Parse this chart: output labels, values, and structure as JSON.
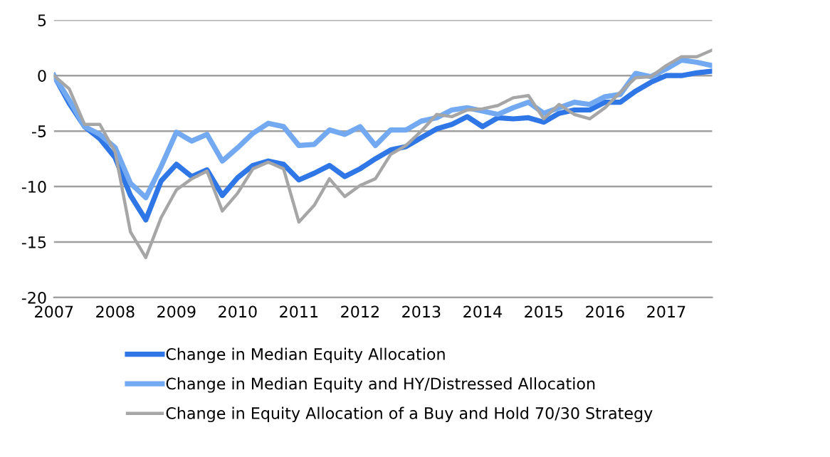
{
  "chart_data": {
    "type": "line",
    "x": [
      2007,
      2007.25,
      2007.5,
      2007.75,
      2008,
      2008.25,
      2008.5,
      2008.75,
      2009,
      2009.25,
      2009.5,
      2009.75,
      2010,
      2010.25,
      2010.5,
      2010.75,
      2011,
      2011.25,
      2011.5,
      2011.75,
      2012,
      2012.25,
      2012.5,
      2012.75,
      2013,
      2013.25,
      2013.5,
      2013.75,
      2014,
      2014.25,
      2014.5,
      2014.75,
      2015,
      2015.25,
      2015.5,
      2015.75,
      2016,
      2016.25,
      2016.5,
      2016.75,
      2017,
      2017.25,
      2017.5,
      2017.75
    ],
    "series": [
      {
        "name": "Change in Median Equity Allocation",
        "color": "#2f76e6",
        "values": [
          0,
          -2.5,
          -4.6,
          -5.7,
          -7.4,
          -10.8,
          -13.0,
          -9.5,
          -8.0,
          -9.1,
          -8.5,
          -10.8,
          -9.2,
          -8.1,
          -7.7,
          -8.0,
          -9.4,
          -8.8,
          -8.1,
          -9.1,
          -8.4,
          -7.5,
          -6.7,
          -6.4,
          -5.6,
          -4.8,
          -4.4,
          -3.7,
          -4.6,
          -3.8,
          -3.9,
          -3.8,
          -4.2,
          -3.4,
          -3.1,
          -3.1,
          -2.4,
          -2.4,
          -1.4,
          -0.6,
          0.0,
          0.0,
          0.25,
          0.4
        ]
      },
      {
        "name": "Change in Median Equity and HY/Distressed Allocation",
        "color": "#72a9f1",
        "values": [
          0,
          -2.2,
          -4.6,
          -5.3,
          -6.5,
          -9.7,
          -11.0,
          -8.2,
          -5.1,
          -5.9,
          -5.3,
          -7.7,
          -6.5,
          -5.2,
          -4.3,
          -4.6,
          -6.3,
          -6.2,
          -4.9,
          -5.3,
          -4.6,
          -6.3,
          -4.9,
          -4.9,
          -4.1,
          -3.8,
          -3.1,
          -2.9,
          -3.2,
          -3.5,
          -2.9,
          -2.4,
          -3.4,
          -2.9,
          -2.4,
          -2.6,
          -1.9,
          -1.7,
          0.2,
          -0.1,
          0.6,
          1.4,
          1.2,
          0.9
        ]
      },
      {
        "name": "Change in Equity Allocation of a Buy and Hold 70/30 Strategy",
        "color": "#a6a6a6",
        "values": [
          0,
          -1.2,
          -4.4,
          -4.4,
          -6.9,
          -14.1,
          -16.4,
          -12.8,
          -10.3,
          -9.3,
          -8.6,
          -12.2,
          -10.6,
          -8.4,
          -7.8,
          -8.4,
          -13.2,
          -11.7,
          -9.3,
          -10.9,
          -9.9,
          -9.3,
          -7.1,
          -6.3,
          -5.0,
          -3.5,
          -3.7,
          -3.1,
          -3.0,
          -2.7,
          -2.0,
          -1.8,
          -3.9,
          -2.6,
          -3.5,
          -3.9,
          -2.9,
          -1.5,
          -0.2,
          -0.1,
          0.9,
          1.7,
          1.7,
          2.3
        ]
      }
    ],
    "xlim": [
      2007,
      2017.75
    ],
    "xticks": [
      2007,
      2008,
      2009,
      2010,
      2011,
      2012,
      2013,
      2014,
      2015,
      2016,
      2017
    ],
    "ylim": [
      -20,
      5
    ],
    "yticks": [
      -20,
      -15,
      -10,
      -5,
      0,
      5
    ],
    "grid": "y",
    "legend": "bottom",
    "marker": "none",
    "line_style": "solid"
  }
}
